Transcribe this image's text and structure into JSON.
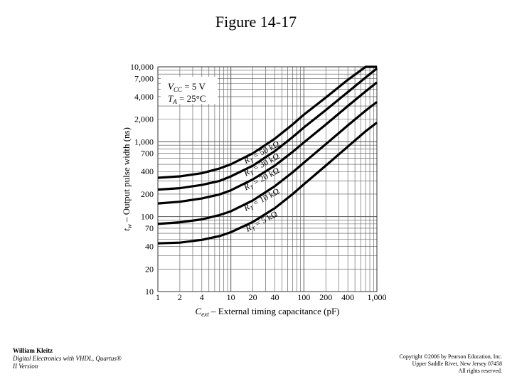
{
  "page": {
    "title": "Figure 14-17"
  },
  "footer": {
    "author": "William Kleitz",
    "book_line1": "Digital Electronics with VHDL, Quartus®",
    "book_line2": "II Version",
    "copyright_line1": "Copyright ©2006 by Pearson Education, Inc.",
    "copyright_line2": "Upper Saddle River, New Jersey 07458",
    "copyright_line3": "All rights reserved."
  },
  "chart_data": {
    "type": "line",
    "title": "",
    "xlabel_main": "C",
    "xlabel_sub": "ext",
    "xlabel_rest": " – External timing capacitance (pF)",
    "ylabel_main": "t",
    "ylabel_sub": "w",
    "ylabel_rest": " – Output pulse width (ns)",
    "x_scale": "log",
    "y_scale": "log",
    "xlim": [
      1,
      1000
    ],
    "ylim": [
      10,
      10000
    ],
    "grid": true,
    "x_ticks": [
      {
        "value": 1,
        "label": "1"
      },
      {
        "value": 2,
        "label": "2"
      },
      {
        "value": 4,
        "label": "4"
      },
      {
        "value": 10,
        "label": "10"
      },
      {
        "value": 20,
        "label": "20"
      },
      {
        "value": 40,
        "label": "40"
      },
      {
        "value": 100,
        "label": "100"
      },
      {
        "value": 200,
        "label": "200"
      },
      {
        "value": 400,
        "label": "400"
      },
      {
        "value": 1000,
        "label": "1,000"
      }
    ],
    "y_ticks": [
      {
        "value": 10,
        "label": "10"
      },
      {
        "value": 20,
        "label": "20"
      },
      {
        "value": 40,
        "label": "40"
      },
      {
        "value": 70,
        "label": "70"
      },
      {
        "value": 100,
        "label": "100"
      },
      {
        "value": 200,
        "label": "200"
      },
      {
        "value": 400,
        "label": "400"
      },
      {
        "value": 700,
        "label": "700"
      },
      {
        "value": 1000,
        "label": "1,000"
      },
      {
        "value": 2000,
        "label": "2,000"
      },
      {
        "value": 4000,
        "label": "4,000"
      },
      {
        "value": 7000,
        "label": "7,000"
      },
      {
        "value": 10000,
        "label": "10,000"
      }
    ],
    "conditions": [
      {
        "main": "V",
        "sub": "CC",
        "rest": " = 5 V"
      },
      {
        "main": "T",
        "sub": "A",
        "rest": " = 25°C"
      }
    ],
    "series": [
      {
        "name": "R_T = 50 kΩ",
        "label_main": "R",
        "label_sub": "T",
        "label_rest": " = 50 kΩ",
        "label_at": 30,
        "x": [
          1,
          2,
          4,
          7,
          10,
          20,
          40,
          70,
          100,
          200,
          400,
          700,
          1000
        ],
        "y": [
          330,
          345,
          380,
          440,
          500,
          700,
          1100,
          1700,
          2300,
          3900,
          6700,
          10000,
          10000
        ]
      },
      {
        "name": "R_T = 30 kΩ",
        "label_main": "R",
        "label_sub": "T",
        "label_rest": " = 30 kΩ",
        "label_at": 30,
        "x": [
          1,
          2,
          4,
          7,
          10,
          20,
          40,
          70,
          100,
          200,
          400,
          700,
          1000
        ],
        "y": [
          230,
          240,
          265,
          300,
          345,
          480,
          750,
          1150,
          1550,
          2650,
          4600,
          7200,
          9500
        ]
      },
      {
        "name": "R_T = 20 kΩ",
        "label_main": "R",
        "label_sub": "T",
        "label_rest": " = 20 kΩ",
        "label_at": 30,
        "x": [
          1,
          2,
          4,
          7,
          10,
          20,
          40,
          70,
          100,
          200,
          400,
          700,
          1000
        ],
        "y": [
          150,
          158,
          175,
          198,
          225,
          315,
          480,
          730,
          980,
          1700,
          3000,
          4700,
          6200
        ]
      },
      {
        "name": "R_T = 10 kΩ",
        "label_main": "R",
        "label_sub": "T",
        "label_rest": " = 10 kΩ",
        "label_at": 30,
        "x": [
          1,
          2,
          4,
          7,
          10,
          20,
          40,
          70,
          100,
          200,
          400,
          700,
          1000
        ],
        "y": [
          80,
          84,
          92,
          105,
          118,
          165,
          255,
          390,
          525,
          930,
          1650,
          2600,
          3400
        ]
      },
      {
        "name": "R_T = 5 kΩ",
        "label_main": "R",
        "label_sub": "T",
        "label_rest": " = 5 kΩ",
        "label_at": 30,
        "x": [
          1,
          2,
          4,
          7,
          10,
          20,
          40,
          70,
          100,
          200,
          400,
          700,
          1000
        ],
        "y": [
          44,
          45,
          49,
          55,
          62,
          85,
          130,
          200,
          270,
          480,
          860,
          1380,
          1800
        ]
      }
    ]
  }
}
